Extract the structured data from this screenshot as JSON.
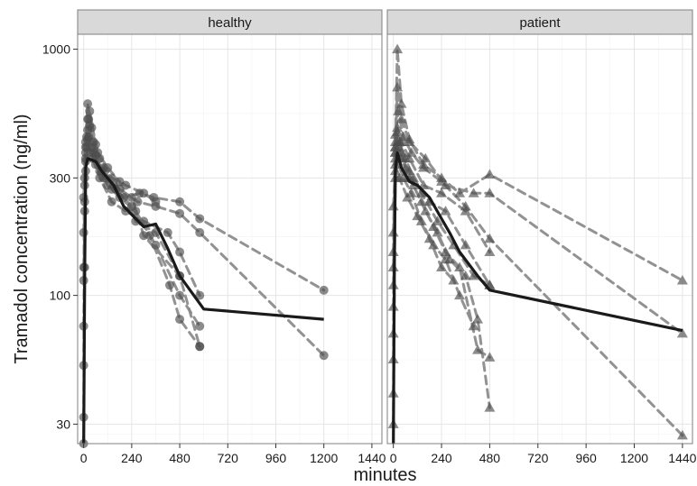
{
  "chart_data": {
    "type": "scatter",
    "xlabel": "minutes",
    "ylabel": "Tramadol concentration (ng/ml)",
    "y_scale": "log",
    "ylim": [
      25,
      1150
    ],
    "xlim": [
      -30,
      1490
    ],
    "x_ticks": [
      0,
      240,
      480,
      720,
      960,
      1200,
      1440
    ],
    "y_ticks": [
      30,
      100,
      300,
      1000
    ],
    "grid": true,
    "colors": {
      "points": "#4d4d4d",
      "dashes": "#8c8c8c",
      "mean": "#1a1a1a",
      "strip": "#d9d9d9",
      "panel_border": "#7f7f7f"
    },
    "panels": [
      {
        "name": "healthy",
        "marker": "circle",
        "subjects": [
          [
            [
              0,
              25
            ],
            [
              5,
              130
            ],
            [
              10,
              320
            ],
            [
              20,
              470
            ],
            [
              35,
              380
            ],
            [
              60,
              340
            ],
            [
              100,
              300
            ],
            [
              150,
              280
            ],
            [
              240,
              250
            ],
            [
              300,
              175
            ],
            [
              480,
              120
            ],
            [
              580,
              62
            ]
          ],
          [
            [
              0,
              32
            ],
            [
              5,
              220
            ],
            [
              10,
              400
            ],
            [
              20,
              520
            ],
            [
              40,
              400
            ],
            [
              80,
              320
            ],
            [
              120,
              280
            ],
            [
              180,
              250
            ],
            [
              260,
              220
            ],
            [
              360,
              160
            ],
            [
              480,
              100
            ],
            [
              580,
              75
            ]
          ],
          [
            [
              0,
              52
            ],
            [
              5,
              280
            ],
            [
              15,
              440
            ],
            [
              30,
              560
            ],
            [
              60,
              410
            ],
            [
              100,
              330
            ],
            [
              160,
              270
            ],
            [
              240,
              230
            ],
            [
              330,
              175
            ],
            [
              430,
              110
            ],
            [
              480,
              80
            ],
            [
              580,
              62
            ]
          ],
          [
            [
              0,
              75
            ],
            [
              5,
              240
            ],
            [
              10,
              360
            ],
            [
              25,
              440
            ],
            [
              50,
              380
            ],
            [
              90,
              320
            ],
            [
              140,
              270
            ],
            [
              200,
              250
            ],
            [
              280,
              260
            ],
            [
              350,
              250
            ],
            [
              480,
              240
            ],
            [
              580,
              205
            ],
            [
              1200,
              105
            ]
          ],
          [
            [
              0,
              115
            ],
            [
              5,
              300
            ],
            [
              15,
              400
            ],
            [
              30,
              490
            ],
            [
              60,
              370
            ],
            [
              110,
              300
            ],
            [
              180,
              270
            ],
            [
              270,
              240
            ],
            [
              360,
              230
            ],
            [
              480,
              215
            ],
            [
              580,
              180
            ],
            [
              1200,
              57
            ]
          ],
          [
            [
              0,
              130
            ],
            [
              10,
              350
            ],
            [
              20,
              430
            ],
            [
              45,
              360
            ],
            [
              80,
              300
            ],
            [
              140,
              240
            ],
            [
              210,
              220
            ],
            [
              300,
              200
            ],
            [
              420,
              180
            ],
            [
              480,
              150
            ],
            [
              580,
              100
            ]
          ],
          [
            [
              0,
              180
            ],
            [
              10,
              380
            ],
            [
              25,
              520
            ],
            [
              50,
              420
            ],
            [
              80,
              360
            ],
            [
              140,
              300
            ],
            [
              210,
              280
            ],
            [
              300,
              260
            ],
            [
              360,
              240
            ]
          ],
          [
            [
              0,
              250
            ],
            [
              10,
              420
            ],
            [
              20,
              600
            ],
            [
              40,
              480
            ],
            [
              70,
              380
            ],
            [
              120,
              330
            ],
            [
              180,
              290
            ],
            [
              260,
              200
            ],
            [
              360,
              180
            ],
            [
              480,
              120
            ]
          ]
        ],
        "mean": [
          [
            0,
            25
          ],
          [
            5,
            120
          ],
          [
            10,
            330
          ],
          [
            20,
            360
          ],
          [
            40,
            355
          ],
          [
            60,
            350
          ],
          [
            90,
            320
          ],
          [
            150,
            280
          ],
          [
            200,
            230
          ],
          [
            260,
            205
          ],
          [
            300,
            190
          ],
          [
            360,
            195
          ],
          [
            420,
            155
          ],
          [
            480,
            120
          ],
          [
            600,
            88
          ],
          [
            1200,
            80
          ]
        ]
      },
      {
        "name": "patient",
        "marker": "triangle",
        "subjects": [
          [
            [
              0,
              30
            ],
            [
              10,
              400
            ],
            [
              20,
              1000
            ],
            [
              40,
              600
            ],
            [
              80,
              430
            ],
            [
              150,
              340
            ],
            [
              240,
              300
            ],
            [
              330,
              260
            ],
            [
              480,
              310
            ],
            [
              1440,
              115
            ]
          ],
          [
            [
              0,
              40
            ],
            [
              10,
              380
            ],
            [
              20,
              700
            ],
            [
              40,
              520
            ],
            [
              80,
              420
            ],
            [
              160,
              360
            ],
            [
              260,
              280
            ],
            [
              400,
              260
            ],
            [
              480,
              260
            ],
            [
              1440,
              70
            ]
          ],
          [
            [
              0,
              55
            ],
            [
              10,
              450
            ],
            [
              25,
              560
            ],
            [
              50,
              440
            ],
            [
              90,
              380
            ],
            [
              150,
              330
            ],
            [
              240,
              290
            ],
            [
              360,
              230
            ],
            [
              480,
              170
            ],
            [
              1440,
              27
            ]
          ],
          [
            [
              0,
              70
            ],
            [
              10,
              300
            ],
            [
              20,
              480
            ],
            [
              40,
              420
            ],
            [
              80,
              360
            ],
            [
              150,
              280
            ],
            [
              240,
              260
            ],
            [
              360,
              220
            ],
            [
              480,
              150
            ]
          ],
          [
            [
              0,
              90
            ],
            [
              10,
              320
            ],
            [
              30,
              420
            ],
            [
              60,
              360
            ],
            [
              100,
              300
            ],
            [
              180,
              240
            ],
            [
              260,
              220
            ],
            [
              360,
              160
            ],
            [
              480,
              110
            ]
          ],
          [
            [
              0,
              110
            ],
            [
              10,
              400
            ],
            [
              20,
              460
            ],
            [
              40,
              380
            ],
            [
              80,
              320
            ],
            [
              140,
              260
            ],
            [
              220,
              200
            ],
            [
              300,
              160
            ],
            [
              400,
              120
            ],
            [
              480,
              110
            ]
          ],
          [
            [
              0,
              130
            ],
            [
              10,
              360
            ],
            [
              20,
              420
            ],
            [
              40,
              360
            ],
            [
              80,
              300
            ],
            [
              140,
              240
            ],
            [
              200,
              190
            ],
            [
              260,
              150
            ],
            [
              330,
              130
            ],
            [
              420,
              60
            ],
            [
              480,
              56
            ]
          ],
          [
            [
              0,
              150
            ],
            [
              10,
              420
            ],
            [
              30,
              400
            ],
            [
              60,
              330
            ],
            [
              100,
              280
            ],
            [
              160,
              220
            ],
            [
              220,
              180
            ],
            [
              280,
              140
            ],
            [
              360,
              120
            ],
            [
              420,
              80
            ],
            [
              480,
              35
            ]
          ],
          [
            [
              0,
              180
            ],
            [
              10,
              380
            ],
            [
              20,
              350
            ],
            [
              50,
              300
            ],
            [
              90,
              260
            ],
            [
              140,
              200
            ],
            [
              200,
              160
            ],
            [
              260,
              140
            ],
            [
              330,
              100
            ],
            [
              400,
              75
            ]
          ],
          [
            [
              0,
              230
            ],
            [
              10,
              340
            ],
            [
              30,
              300
            ],
            [
              70,
              250
            ],
            [
              120,
              210
            ],
            [
              180,
              170
            ],
            [
              240,
              130
            ],
            [
              300,
              115
            ]
          ]
        ],
        "mean": [
          [
            0,
            25
          ],
          [
            5,
            130
          ],
          [
            10,
            320
          ],
          [
            20,
            380
          ],
          [
            40,
            330
          ],
          [
            80,
            290
          ],
          [
            120,
            280
          ],
          [
            180,
            250
          ],
          [
            240,
            205
          ],
          [
            280,
            180
          ],
          [
            330,
            150
          ],
          [
            420,
            120
          ],
          [
            480,
            105
          ],
          [
            1440,
            72
          ]
        ]
      }
    ]
  }
}
